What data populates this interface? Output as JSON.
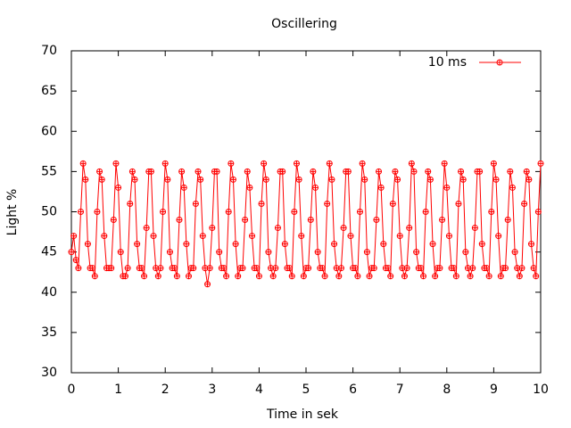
{
  "chart_data": {
    "type": "line",
    "title": "Oscillering",
    "xlabel": "Time in sek",
    "ylabel": "Light %",
    "xlim": [
      0,
      10
    ],
    "xticks": [
      0,
      1,
      2,
      3,
      4,
      5,
      6,
      7,
      8,
      9,
      10
    ],
    "ylim": [
      30,
      70
    ],
    "yticks": [
      30,
      35,
      40,
      45,
      50,
      55,
      60,
      65,
      70
    ],
    "legend": "top-right",
    "x": [
      0,
      0.05,
      0.1,
      0.15,
      0.2,
      0.25,
      0.3,
      0.35,
      0.4,
      0.45,
      0.5,
      0.55,
      0.6,
      0.65,
      0.7,
      0.75,
      0.8,
      0.85,
      0.9,
      0.95,
      1,
      1.05,
      1.1,
      1.15,
      1.2,
      1.25,
      1.3,
      1.35,
      1.4,
      1.45,
      1.5,
      1.55,
      1.6,
      1.65,
      1.7,
      1.75,
      1.8,
      1.85,
      1.9,
      1.95,
      2,
      2.05,
      2.1,
      2.15,
      2.2,
      2.25,
      2.3,
      2.35,
      2.4,
      2.45,
      2.5,
      2.55,
      2.6,
      2.65,
      2.7,
      2.75,
      2.8,
      2.85,
      2.9,
      2.95,
      3,
      3.05,
      3.1,
      3.15,
      3.2,
      3.25,
      3.3,
      3.35,
      3.4,
      3.45,
      3.5,
      3.55,
      3.6,
      3.65,
      3.7,
      3.75,
      3.8,
      3.85,
      3.9,
      3.95,
      4,
      4.05,
      4.1,
      4.15,
      4.2,
      4.25,
      4.3,
      4.35,
      4.4,
      4.45,
      4.5,
      4.55,
      4.6,
      4.65,
      4.7,
      4.75,
      4.8,
      4.85,
      4.9,
      4.95,
      5,
      5.05,
      5.1,
      5.15,
      5.2,
      5.25,
      5.3,
      5.35,
      5.4,
      5.45,
      5.5,
      5.55,
      5.6,
      5.65,
      5.7,
      5.75,
      5.8,
      5.85,
      5.9,
      5.95,
      6,
      6.05,
      6.1,
      6.15,
      6.2,
      6.25,
      6.3,
      6.35,
      6.4,
      6.45,
      6.5,
      6.55,
      6.6,
      6.65,
      6.7,
      6.75,
      6.8,
      6.85,
      6.9,
      6.95,
      7,
      7.05,
      7.1,
      7.15,
      7.2,
      7.25,
      7.3,
      7.35,
      7.4,
      7.45,
      7.5,
      7.55,
      7.6,
      7.65,
      7.7,
      7.75,
      7.8,
      7.85,
      7.9,
      7.95,
      8,
      8.05,
      8.1,
      8.15,
      8.2,
      8.25,
      8.3,
      8.35,
      8.4,
      8.45,
      8.5,
      8.55,
      8.6,
      8.65,
      8.7,
      8.75,
      8.8,
      8.85,
      8.9,
      8.95,
      9,
      9.05,
      9.1,
      9.15,
      9.2,
      9.25,
      9.3,
      9.35,
      9.4,
      9.45,
      9.5,
      9.55,
      9.6,
      9.65,
      9.7,
      9.75,
      9.8,
      9.85,
      9.9,
      9.95,
      10
    ],
    "series": [
      {
        "name": "10 ms",
        "color": "#ff0000",
        "values": [
          45,
          47,
          44,
          43,
          50,
          56,
          54,
          46,
          43,
          43,
          42,
          50,
          55,
          54,
          47,
          43,
          43,
          43,
          49,
          56,
          53,
          45,
          42,
          42,
          43,
          51,
          55,
          54,
          46,
          43,
          43,
          42,
          48,
          55,
          55,
          47,
          43,
          42,
          43,
          50,
          56,
          54,
          45,
          43,
          43,
          42,
          49,
          55,
          53,
          46,
          42,
          43,
          43,
          51,
          55,
          54,
          47,
          43,
          41,
          43,
          48,
          55,
          55,
          45,
          43,
          43,
          42,
          50,
          56,
          54,
          46,
          42,
          43,
          43,
          49,
          55,
          53,
          47,
          43,
          43,
          42,
          51,
          56,
          54,
          45,
          43,
          42,
          43,
          48,
          55,
          55,
          46,
          43,
          43,
          42,
          50,
          56,
          54,
          47,
          42,
          43,
          43,
          49,
          55,
          53,
          45,
          43,
          43,
          42,
          51,
          56,
          54,
          46,
          43,
          42,
          43,
          48,
          55,
          55,
          47,
          43,
          43,
          42,
          50,
          56,
          54,
          45,
          42,
          43,
          43,
          49,
          55,
          53,
          46,
          43,
          43,
          42,
          51,
          55,
          54,
          47,
          43,
          42,
          43,
          48,
          56,
          55,
          45,
          43,
          43,
          42,
          50,
          55,
          54,
          46,
          42,
          43,
          43,
          49,
          56,
          53,
          47,
          43,
          43,
          42,
          51,
          55,
          54,
          45,
          43,
          42,
          43,
          48,
          55,
          55,
          46,
          43,
          43,
          42,
          50,
          56,
          54,
          47,
          42,
          43,
          43,
          49,
          55,
          53,
          45,
          43,
          42,
          43,
          51,
          55,
          54,
          46,
          43,
          42,
          50,
          56
        ]
      }
    ]
  }
}
